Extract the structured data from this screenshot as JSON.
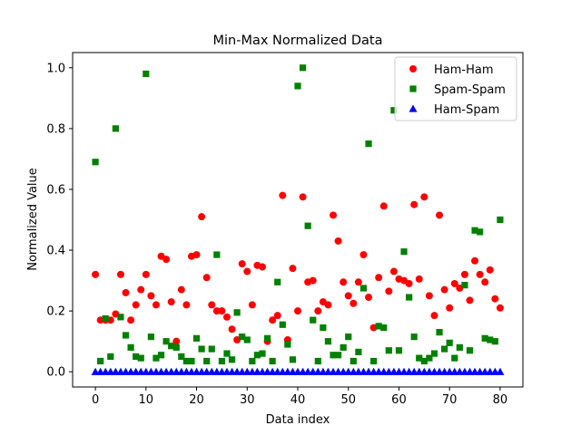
{
  "chart_data": {
    "type": "scatter",
    "title": "Min-Max Normalized Data",
    "xlabel": "Data index",
    "ylabel": "Normalized Value",
    "xlim": [
      -4.5,
      84.5
    ],
    "ylim": [
      -0.05,
      1.05
    ],
    "xticks": [
      0,
      10,
      20,
      30,
      40,
      50,
      60,
      70,
      80
    ],
    "yticks": [
      0.0,
      0.2,
      0.4,
      0.6,
      0.8,
      1.0
    ],
    "ytick_labels": [
      "0.0",
      "0.2",
      "0.4",
      "0.6",
      "0.8",
      "1.0"
    ],
    "grid": false,
    "legend_position": "top-right",
    "series": [
      {
        "name": "Ham-Ham",
        "marker": "circle",
        "color": "#ff0000",
        "points": [
          [
            0,
            0.32
          ],
          [
            1,
            0.17
          ],
          [
            2,
            0.17
          ],
          [
            3,
            0.17
          ],
          [
            4,
            0.19
          ],
          [
            5,
            0.32
          ],
          [
            6,
            0.26
          ],
          [
            7,
            0.17
          ],
          [
            8,
            0.22
          ],
          [
            9,
            0.27
          ],
          [
            10,
            0.32
          ],
          [
            11,
            0.25
          ],
          [
            12,
            0.22
          ],
          [
            13,
            0.38
          ],
          [
            14,
            0.37
          ],
          [
            15,
            0.23
          ],
          [
            16,
            0.1
          ],
          [
            17,
            0.27
          ],
          [
            18,
            0.22
          ],
          [
            19,
            0.38
          ],
          [
            20,
            0.385
          ],
          [
            21,
            0.51
          ],
          [
            22,
            0.31
          ],
          [
            23,
            0.22
          ],
          [
            24,
            0.2
          ],
          [
            25,
            0.2
          ],
          [
            26,
            0.18
          ],
          [
            27,
            0.14
          ],
          [
            28,
            0.105
          ],
          [
            29,
            0.355
          ],
          [
            30,
            0.33
          ],
          [
            31,
            0.22
          ],
          [
            32,
            0.35
          ],
          [
            33,
            0.345
          ],
          [
            34,
            0.1
          ],
          [
            35,
            0.17
          ],
          [
            36,
            0.185
          ],
          [
            37,
            0.58
          ],
          [
            38,
            0.105
          ],
          [
            39,
            0.34
          ],
          [
            40,
            0.2
          ],
          [
            41,
            0.575
          ],
          [
            42,
            0.295
          ],
          [
            43,
            0.3
          ],
          [
            44,
            0.2
          ],
          [
            45,
            0.23
          ],
          [
            46,
            0.22
          ],
          [
            47,
            0.515
          ],
          [
            48,
            0.43
          ],
          [
            49,
            0.295
          ],
          [
            50,
            0.25
          ],
          [
            51,
            0.225
          ],
          [
            52,
            0.295
          ],
          [
            53,
            0.385
          ],
          [
            54,
            0.245
          ],
          [
            55,
            0.145
          ],
          [
            56,
            0.31
          ],
          [
            57,
            0.545
          ],
          [
            58,
            0.265
          ],
          [
            59,
            0.33
          ],
          [
            60,
            0.305
          ],
          [
            61,
            0.3
          ],
          [
            62,
            0.29
          ],
          [
            63,
            0.55
          ],
          [
            64,
            0.305
          ],
          [
            65,
            0.575
          ],
          [
            66,
            0.25
          ],
          [
            67,
            0.185
          ],
          [
            68,
            0.515
          ],
          [
            69,
            0.27
          ],
          [
            70,
            0.21
          ],
          [
            71,
            0.29
          ],
          [
            72,
            0.275
          ],
          [
            73,
            0.32
          ],
          [
            74,
            0.235
          ],
          [
            75,
            0.365
          ],
          [
            76,
            0.32
          ],
          [
            77,
            0.295
          ],
          [
            78,
            0.335
          ],
          [
            79,
            0.24
          ],
          [
            80,
            0.21
          ]
        ]
      },
      {
        "name": "Spam-Spam",
        "marker": "square",
        "color": "#008000",
        "points": [
          [
            0,
            0.69
          ],
          [
            1,
            0.035
          ],
          [
            2,
            0.175
          ],
          [
            3,
            0.05
          ],
          [
            4,
            0.8
          ],
          [
            5,
            0.18
          ],
          [
            6,
            0.12
          ],
          [
            7,
            0.08
          ],
          [
            8,
            0.05
          ],
          [
            9,
            0.045
          ],
          [
            10,
            0.98
          ],
          [
            11,
            0.115
          ],
          [
            12,
            0.045
          ],
          [
            13,
            0.055
          ],
          [
            14,
            0.1
          ],
          [
            15,
            0.085
          ],
          [
            16,
            0.08
          ],
          [
            17,
            0.05
          ],
          [
            18,
            0.035
          ],
          [
            19,
            0.035
          ],
          [
            20,
            0.11
          ],
          [
            21,
            0.075
          ],
          [
            22,
            0.035
          ],
          [
            23,
            0.075
          ],
          [
            24,
            0.385
          ],
          [
            25,
            0.035
          ],
          [
            26,
            0.06
          ],
          [
            27,
            0.04
          ],
          [
            28,
            0.195
          ],
          [
            29,
            0.115
          ],
          [
            30,
            0.105
          ],
          [
            31,
            0.035
          ],
          [
            32,
            0.055
          ],
          [
            33,
            0.06
          ],
          [
            34,
            0.11
          ],
          [
            35,
            0.035
          ],
          [
            36,
            0.295
          ],
          [
            37,
            0.155
          ],
          [
            38,
            0.09
          ],
          [
            39,
            0.04
          ],
          [
            40,
            0.94
          ],
          [
            41,
            1.0
          ],
          [
            42,
            0.48
          ],
          [
            43,
            0.17
          ],
          [
            44,
            0.035
          ],
          [
            45,
            0.145
          ],
          [
            46,
            0.1
          ],
          [
            47,
            0.055
          ],
          [
            48,
            0.055
          ],
          [
            49,
            0.08
          ],
          [
            50,
            0.115
          ],
          [
            51,
            0.035
          ],
          [
            52,
            0.065
          ],
          [
            53,
            0.275
          ],
          [
            54,
            0.75
          ],
          [
            55,
            0.035
          ],
          [
            56,
            0.15
          ],
          [
            57,
            0.145
          ],
          [
            58,
            0.07
          ],
          [
            59,
            0.86
          ],
          [
            60,
            0.07
          ],
          [
            61,
            0.395
          ],
          [
            62,
            0.245
          ],
          [
            63,
            0.115
          ],
          [
            64,
            0.045
          ],
          [
            65,
            0.035
          ],
          [
            66,
            0.045
          ],
          [
            67,
            0.06
          ],
          [
            68,
            0.13
          ],
          [
            69,
            0.075
          ],
          [
            70,
            0.095
          ],
          [
            71,
            0.045
          ],
          [
            72,
            0.08
          ],
          [
            73,
            0.285
          ],
          [
            74,
            0.07
          ],
          [
            75,
            0.465
          ],
          [
            76,
            0.46
          ],
          [
            77,
            0.11
          ],
          [
            78,
            0.105
          ],
          [
            79,
            0.1
          ],
          [
            80,
            0.5
          ]
        ]
      },
      {
        "name": "Ham-Spam",
        "marker": "triangle",
        "color": "#0000ff",
        "points": [
          [
            0,
            0
          ],
          [
            1,
            0
          ],
          [
            2,
            0
          ],
          [
            3,
            0
          ],
          [
            4,
            0
          ],
          [
            5,
            0
          ],
          [
            6,
            0
          ],
          [
            7,
            0
          ],
          [
            8,
            0
          ],
          [
            9,
            0
          ],
          [
            10,
            0
          ],
          [
            11,
            0
          ],
          [
            12,
            0
          ],
          [
            13,
            0
          ],
          [
            14,
            0
          ],
          [
            15,
            0
          ],
          [
            16,
            0
          ],
          [
            17,
            0
          ],
          [
            18,
            0
          ],
          [
            19,
            0
          ],
          [
            20,
            0
          ],
          [
            21,
            0
          ],
          [
            22,
            0
          ],
          [
            23,
            0
          ],
          [
            24,
            0
          ],
          [
            25,
            0
          ],
          [
            26,
            0
          ],
          [
            27,
            0
          ],
          [
            28,
            0
          ],
          [
            29,
            0
          ],
          [
            30,
            0
          ],
          [
            31,
            0
          ],
          [
            32,
            0
          ],
          [
            33,
            0
          ],
          [
            34,
            0
          ],
          [
            35,
            0
          ],
          [
            36,
            0
          ],
          [
            37,
            0
          ],
          [
            38,
            0
          ],
          [
            39,
            0
          ],
          [
            40,
            0
          ],
          [
            41,
            0
          ],
          [
            42,
            0
          ],
          [
            43,
            0
          ],
          [
            44,
            0
          ],
          [
            45,
            0
          ],
          [
            46,
            0
          ],
          [
            47,
            0
          ],
          [
            48,
            0
          ],
          [
            49,
            0
          ],
          [
            50,
            0
          ],
          [
            51,
            0
          ],
          [
            52,
            0
          ],
          [
            53,
            0
          ],
          [
            54,
            0
          ],
          [
            55,
            0
          ],
          [
            56,
            0
          ],
          [
            57,
            0
          ],
          [
            58,
            0
          ],
          [
            59,
            0
          ],
          [
            60,
            0
          ],
          [
            61,
            0
          ],
          [
            62,
            0
          ],
          [
            63,
            0
          ],
          [
            64,
            0
          ],
          [
            65,
            0
          ],
          [
            66,
            0
          ],
          [
            67,
            0
          ],
          [
            68,
            0
          ],
          [
            69,
            0
          ],
          [
            70,
            0
          ],
          [
            71,
            0
          ],
          [
            72,
            0
          ],
          [
            73,
            0
          ],
          [
            74,
            0
          ],
          [
            75,
            0
          ],
          [
            76,
            0
          ],
          [
            77,
            0
          ],
          [
            78,
            0
          ],
          [
            79,
            0
          ],
          [
            80,
            0
          ]
        ]
      }
    ]
  }
}
